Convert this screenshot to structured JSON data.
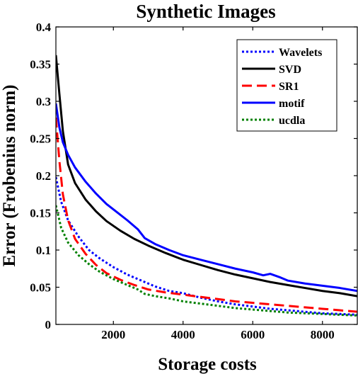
{
  "chart_data": {
    "type": "line",
    "title": "Synthetic Images",
    "xlabel": "Storage costs",
    "ylabel": "Error (Frobenius norm)",
    "xlim": [
      350,
      9000
    ],
    "ylim": [
      0,
      0.4
    ],
    "xticks": [
      2000,
      4000,
      6000,
      8000
    ],
    "yticks": [
      0,
      0.05,
      0.1,
      0.15,
      0.2,
      0.25,
      0.3,
      0.35,
      0.4
    ],
    "xtick_labels": [
      "2000",
      "4000",
      "6000",
      "8000"
    ],
    "ytick_labels": [
      "0",
      "0.05",
      "0.1",
      "0.15",
      "0.2",
      "0.25",
      "0.3",
      "0.35",
      "0.4"
    ],
    "grid": false,
    "legend_position": "top-right",
    "series": [
      {
        "name": "Wavelets",
        "color": "#0000ff",
        "dash": "dotted",
        "x": [
          350,
          500,
          700,
          1000,
          1300,
          1600,
          2000,
          2400,
          2800,
          3200,
          3600,
          4000,
          4500,
          5000,
          5500,
          6000,
          6500,
          7000,
          7500,
          8000,
          8500,
          9000
        ],
        "y": [
          0.198,
          0.165,
          0.14,
          0.118,
          0.1,
          0.089,
          0.077,
          0.067,
          0.059,
          0.051,
          0.045,
          0.042,
          0.036,
          0.031,
          0.027,
          0.024,
          0.021,
          0.019,
          0.017,
          0.015,
          0.014,
          0.013
        ]
      },
      {
        "name": "SVD",
        "color": "#000000",
        "dash": "solid",
        "x": [
          350,
          450,
          550,
          700,
          900,
          1200,
          1500,
          1800,
          2200,
          2600,
          3000,
          3500,
          4000,
          4500,
          5000,
          5500,
          6000,
          6500,
          7000,
          7500,
          8000,
          8500,
          9000
        ],
        "y": [
          0.362,
          0.31,
          0.26,
          0.215,
          0.19,
          0.168,
          0.152,
          0.139,
          0.126,
          0.115,
          0.106,
          0.096,
          0.087,
          0.08,
          0.073,
          0.067,
          0.062,
          0.057,
          0.053,
          0.049,
          0.045,
          0.042,
          0.038
        ]
      },
      {
        "name": "SR1",
        "color": "#ff0000",
        "dash": "dashed",
        "x": [
          350,
          450,
          550,
          700,
          900,
          1200,
          1500,
          1800,
          2200,
          2600,
          3000,
          3500,
          4000,
          4500,
          5000,
          5500,
          6000,
          6500,
          7000,
          7500,
          8000,
          8500,
          9000
        ],
        "y": [
          0.278,
          0.22,
          0.175,
          0.14,
          0.115,
          0.095,
          0.08,
          0.069,
          0.06,
          0.053,
          0.047,
          0.043,
          0.04,
          0.037,
          0.034,
          0.031,
          0.029,
          0.027,
          0.025,
          0.023,
          0.021,
          0.019,
          0.017
        ]
      },
      {
        "name": "motif",
        "color": "#0000ff",
        "dash": "solid",
        "x": [
          350,
          450,
          550,
          700,
          900,
          1200,
          1500,
          1800,
          2100,
          2400,
          2700,
          2900,
          3200,
          3600,
          4000,
          4500,
          5000,
          5500,
          6000,
          6300,
          6500,
          6800,
          7000,
          7500,
          8000,
          8500,
          9000
        ],
        "y": [
          0.297,
          0.265,
          0.245,
          0.228,
          0.211,
          0.192,
          0.176,
          0.162,
          0.151,
          0.14,
          0.128,
          0.116,
          0.108,
          0.1,
          0.093,
          0.087,
          0.081,
          0.075,
          0.07,
          0.066,
          0.068,
          0.063,
          0.059,
          0.055,
          0.052,
          0.049,
          0.045
        ]
      },
      {
        "name": "ucdla",
        "color": "#008000",
        "dash": "dotted",
        "x": [
          350,
          500,
          700,
          1000,
          1300,
          1600,
          2000,
          2400,
          2700,
          2900,
          3200,
          3600,
          4000,
          4500,
          5000,
          5500,
          6000,
          6500,
          7000,
          7500,
          8000,
          8500,
          9000
        ],
        "y": [
          0.16,
          0.13,
          0.11,
          0.093,
          0.081,
          0.071,
          0.061,
          0.053,
          0.047,
          0.041,
          0.038,
          0.035,
          0.031,
          0.028,
          0.025,
          0.022,
          0.02,
          0.018,
          0.016,
          0.015,
          0.014,
          0.013,
          0.012
        ]
      }
    ]
  }
}
